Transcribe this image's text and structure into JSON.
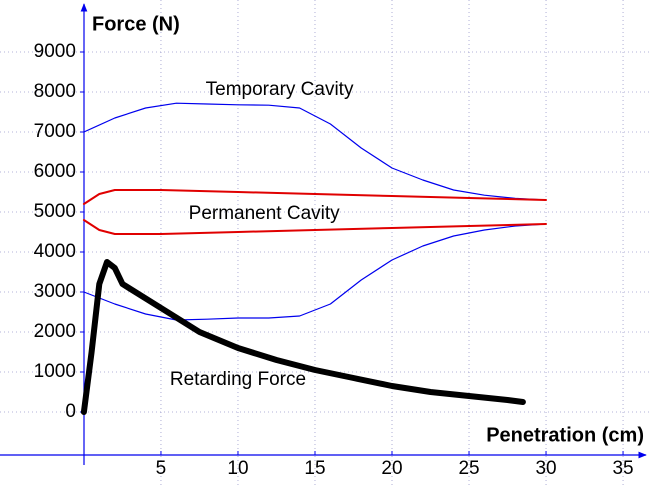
{
  "chart_data": {
    "type": "line",
    "ylabel": "Force (N)",
    "xlabel": "Penetration (cm)",
    "xlim": [
      -5.45,
      36.75
    ],
    "ylim": [
      -1850,
      10300
    ],
    "xticks": [
      5,
      10,
      15,
      20,
      25,
      30,
      35
    ],
    "yticks": [
      0,
      1000,
      2000,
      3000,
      4000,
      5000,
      6000,
      7000,
      8000,
      9000
    ],
    "grid": true,
    "annotations": [
      {
        "text": "Temporary Cavity",
        "x": 12.7,
        "y": 8050
      },
      {
        "text": "Permanent Cavity",
        "x": 11.7,
        "y": 4950
      },
      {
        "text": "Retarding Force",
        "x": 10.0,
        "y": 800
      }
    ],
    "series": [
      {
        "color": "#0000ee",
        "width": 1.2,
        "x": [
          0,
          2,
          4,
          6,
          8,
          10,
          12,
          14,
          16,
          18,
          20,
          22,
          24,
          26,
          28,
          30
        ],
        "values": [
          7000,
          7350,
          7600,
          7720,
          7700,
          7680,
          7670,
          7600,
          7200,
          6600,
          6100,
          5800,
          5550,
          5420,
          5340,
          5300
        ]
      },
      {
        "color": "#0000ee",
        "width": 1.2,
        "x": [
          0,
          2,
          4,
          6,
          8,
          10,
          12,
          14,
          16,
          18,
          20,
          22,
          24,
          26,
          28,
          30
        ],
        "values": [
          3000,
          2700,
          2450,
          2300,
          2320,
          2350,
          2350,
          2400,
          2700,
          3300,
          3800,
          4150,
          4400,
          4550,
          4650,
          4700
        ]
      },
      {
        "color": "#e00000",
        "width": 2,
        "x": [
          0,
          1,
          2,
          5,
          10,
          15,
          20,
          25,
          30
        ],
        "values": [
          5200,
          5450,
          5550,
          5550,
          5500,
          5450,
          5400,
          5350,
          5300
        ]
      },
      {
        "color": "#e00000",
        "width": 2,
        "x": [
          0,
          1,
          2,
          5,
          10,
          15,
          20,
          25,
          30
        ],
        "values": [
          4800,
          4550,
          4450,
          4450,
          4500,
          4550,
          4600,
          4650,
          4700
        ]
      },
      {
        "color": "#000000",
        "width": 6,
        "x": [
          0,
          0.5,
          1,
          1.5,
          2,
          2.5,
          5,
          7.5,
          10,
          12.5,
          15,
          17.5,
          20,
          22.5,
          25,
          27.5,
          28.5
        ],
        "values": [
          0,
          1500,
          3200,
          3750,
          3600,
          3200,
          2600,
          2000,
          1600,
          1300,
          1050,
          850,
          650,
          500,
          400,
          300,
          250
        ]
      }
    ]
  }
}
